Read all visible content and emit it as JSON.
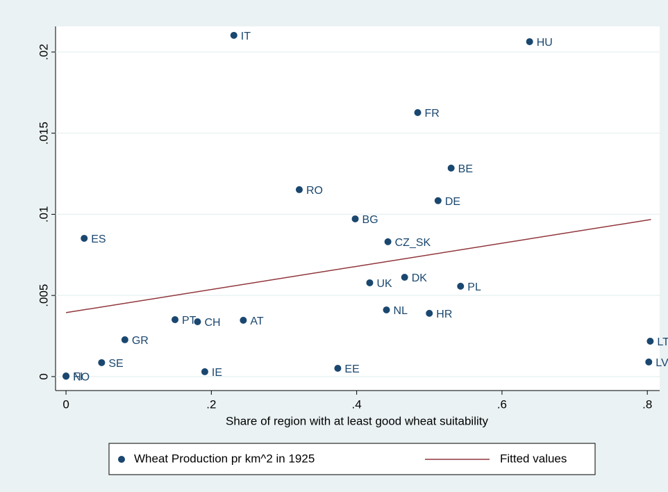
{
  "chart_data": {
    "type": "scatter",
    "xlabel": "Share of region with at least good wheat suitability",
    "xlim": [
      -0.0144,
      0.817
    ],
    "ylim": [
      -0.00086,
      0.02158
    ],
    "xticks": [
      0,
      {
        "value": 0.2,
        "label": ".2"
      },
      {
        "value": 0.4,
        "label": ".4"
      },
      {
        "value": 0.6,
        "label": ".6"
      },
      {
        "value": 0.8,
        "label": ".8"
      }
    ],
    "yticks": [
      0,
      {
        "value": 0.005,
        "label": ".005"
      },
      {
        "value": 0.01,
        "label": ".01"
      },
      {
        "value": 0.015,
        "label": ".015"
      },
      {
        "value": 0.02,
        "label": ".02"
      }
    ],
    "grid": true,
    "legend": "bottom",
    "series": [
      {
        "name": "Wheat Production pr km^2 in 1925",
        "type": "scatter",
        "color": "#1a476f",
        "labels": [
          "IT",
          "HU",
          "FR",
          "BE",
          "RO",
          "DE",
          "BG",
          "ES",
          "CZ_SK",
          "UK",
          "DK",
          "PL",
          "NL",
          "HR",
          "PT",
          "CH",
          "AT",
          "GR",
          "LT",
          "SE",
          "LV",
          "IE",
          "EE",
          "FI",
          "NO"
        ],
        "x": [
          0.231,
          0.638,
          0.484,
          0.53,
          0.321,
          0.512,
          0.398,
          0.025,
          0.443,
          0.418,
          0.466,
          0.543,
          0.441,
          0.5,
          0.15,
          0.181,
          0.244,
          0.081,
          0.804,
          0.049,
          0.802,
          0.191,
          0.374,
          0,
          0
        ],
        "values": [
          0.02103,
          0.02064,
          0.01627,
          0.01285,
          0.01152,
          0.01084,
          0.00972,
          0.00852,
          0.00831,
          0.00578,
          0.00612,
          0.00557,
          0.00411,
          0.0039,
          0.00351,
          0.00338,
          0.00347,
          0.00227,
          0.00218,
          0.00086,
          0.0009,
          0.0003,
          0.00051,
          4e-05,
          2e-05
        ]
      },
      {
        "name": "Fitted values",
        "type": "line",
        "color": "#90353b",
        "x": [
          0,
          0.805
        ],
        "values": [
          0.00394,
          0.00968
        ]
      }
    ]
  }
}
